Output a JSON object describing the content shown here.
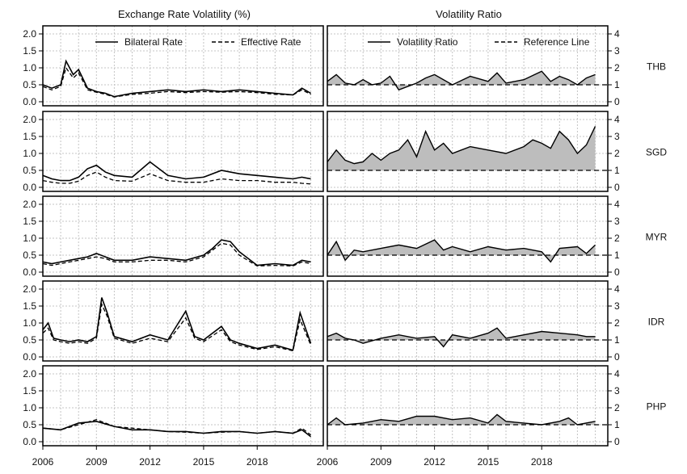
{
  "titles": {
    "left": "Exchange Rate Volatility (%)",
    "right": "Volatility Ratio"
  },
  "legends": {
    "left": [
      "Bilateral Rate",
      "Effective Rate"
    ],
    "right": [
      "Volatility Ratio",
      "Reference Line"
    ]
  },
  "x_tick_labels": [
    "2006",
    "2009",
    "2012",
    "2015",
    "2018"
  ],
  "chart_data": [
    {
      "type": "line",
      "panel": "left",
      "title": "Exchange Rate Volatility (%)",
      "xlim": [
        2006,
        2021.7
      ],
      "ylim": [
        0,
        2.0
      ],
      "y_ticks": [
        0.0,
        0.5,
        1.0,
        1.5,
        2.0
      ],
      "x_ticks": [
        2006,
        2009,
        2012,
        2015,
        2018
      ],
      "grid": true,
      "legend_position": "top",
      "series_names": [
        "Bilateral Rate",
        "Effective Rate"
      ],
      "facets": [
        {
          "label": "THB",
          "x": [
            2006.0,
            2006.5,
            2007.0,
            2007.3,
            2007.7,
            2008.0,
            2008.5,
            2009.0,
            2009.5,
            2010.0,
            2011.0,
            2012.0,
            2013.0,
            2014.0,
            2015.0,
            2016.0,
            2017.0,
            2018.0,
            2019.0,
            2020.0,
            2020.5,
            2021.0
          ],
          "series": [
            {
              "name": "Bilateral Rate",
              "values": [
                0.5,
                0.4,
                0.5,
                1.2,
                0.8,
                0.95,
                0.4,
                0.3,
                0.25,
                0.15,
                0.25,
                0.3,
                0.35,
                0.3,
                0.35,
                0.3,
                0.35,
                0.3,
                0.25,
                0.2,
                0.4,
                0.25
              ]
            },
            {
              "name": "Effective Rate",
              "values": [
                0.45,
                0.35,
                0.45,
                1.0,
                0.7,
                0.85,
                0.35,
                0.28,
                0.22,
                0.14,
                0.22,
                0.25,
                0.3,
                0.27,
                0.3,
                0.28,
                0.3,
                0.27,
                0.22,
                0.2,
                0.35,
                0.22
              ]
            }
          ]
        },
        {
          "label": "SGD",
          "x": [
            2006.0,
            2006.5,
            2007.0,
            2007.5,
            2008.0,
            2008.5,
            2009.0,
            2009.5,
            2010.0,
            2011.0,
            2012.0,
            2013.0,
            2014.0,
            2015.0,
            2016.0,
            2017.0,
            2018.0,
            2019.0,
            2020.0,
            2020.5,
            2021.0
          ],
          "series": [
            {
              "name": "Bilateral Rate",
              "values": [
                0.35,
                0.25,
                0.2,
                0.2,
                0.3,
                0.55,
                0.65,
                0.45,
                0.35,
                0.3,
                0.75,
                0.35,
                0.25,
                0.3,
                0.5,
                0.4,
                0.35,
                0.3,
                0.25,
                0.3,
                0.25
              ]
            },
            {
              "name": "Effective Rate",
              "values": [
                0.2,
                0.15,
                0.12,
                0.12,
                0.18,
                0.35,
                0.45,
                0.3,
                0.2,
                0.18,
                0.4,
                0.2,
                0.15,
                0.15,
                0.25,
                0.2,
                0.2,
                0.15,
                0.15,
                0.12,
                0.1
              ]
            }
          ]
        },
        {
          "label": "MYR",
          "x": [
            2006.0,
            2006.5,
            2007.0,
            2007.5,
            2008.0,
            2008.5,
            2009.0,
            2009.5,
            2010.0,
            2011.0,
            2012.0,
            2013.0,
            2014.0,
            2015.0,
            2015.5,
            2016.0,
            2016.5,
            2017.0,
            2018.0,
            2019.0,
            2020.0,
            2020.5,
            2021.0
          ],
          "series": [
            {
              "name": "Bilateral Rate",
              "values": [
                0.3,
                0.25,
                0.3,
                0.35,
                0.4,
                0.45,
                0.55,
                0.45,
                0.35,
                0.35,
                0.45,
                0.4,
                0.35,
                0.5,
                0.7,
                0.95,
                0.9,
                0.6,
                0.2,
                0.25,
                0.2,
                0.35,
                0.3
              ]
            },
            {
              "name": "Effective Rate",
              "values": [
                0.25,
                0.2,
                0.25,
                0.3,
                0.35,
                0.4,
                0.45,
                0.4,
                0.3,
                0.3,
                0.35,
                0.35,
                0.3,
                0.45,
                0.65,
                0.85,
                0.8,
                0.5,
                0.18,
                0.2,
                0.18,
                0.3,
                0.25
              ]
            }
          ]
        },
        {
          "label": "IDR",
          "x": [
            2006.0,
            2006.3,
            2006.6,
            2007.0,
            2007.5,
            2008.0,
            2008.5,
            2009.0,
            2009.3,
            2009.6,
            2010.0,
            2011.0,
            2012.0,
            2013.0,
            2014.0,
            2014.5,
            2015.0,
            2016.0,
            2016.5,
            2017.0,
            2018.0,
            2019.0,
            2020.0,
            2020.4,
            2020.8,
            2021.0
          ],
          "series": [
            {
              "name": "Bilateral Rate",
              "values": [
                0.8,
                1.0,
                0.55,
                0.5,
                0.45,
                0.5,
                0.45,
                0.6,
                1.75,
                1.3,
                0.6,
                0.45,
                0.65,
                0.5,
                1.35,
                0.6,
                0.5,
                0.9,
                0.5,
                0.4,
                0.25,
                0.35,
                0.2,
                1.3,
                0.7,
                0.4
              ]
            },
            {
              "name": "Effective Rate",
              "values": [
                0.7,
                0.85,
                0.5,
                0.45,
                0.4,
                0.45,
                0.4,
                0.55,
                1.55,
                1.2,
                0.55,
                0.4,
                0.55,
                0.45,
                1.15,
                0.55,
                0.45,
                0.8,
                0.45,
                0.35,
                0.22,
                0.3,
                0.18,
                1.1,
                0.6,
                0.35
              ]
            }
          ]
        },
        {
          "label": "PHP",
          "x": [
            2006.0,
            2007.0,
            2008.0,
            2009.0,
            2010.0,
            2011.0,
            2012.0,
            2013.0,
            2014.0,
            2015.0,
            2016.0,
            2017.0,
            2018.0,
            2019.0,
            2020.0,
            2020.5,
            2021.0
          ],
          "series": [
            {
              "name": "Bilateral Rate",
              "values": [
                0.4,
                0.35,
                0.55,
                0.6,
                0.45,
                0.35,
                0.35,
                0.3,
                0.3,
                0.25,
                0.3,
                0.3,
                0.25,
                0.3,
                0.25,
                0.35,
                0.15
              ]
            },
            {
              "name": "Effective Rate",
              "values": [
                0.4,
                0.35,
                0.5,
                0.65,
                0.45,
                0.4,
                0.35,
                0.3,
                0.28,
                0.25,
                0.28,
                0.3,
                0.25,
                0.3,
                0.25,
                0.4,
                0.2
              ]
            }
          ]
        }
      ]
    },
    {
      "type": "area",
      "panel": "right",
      "title": "Volatility Ratio",
      "xlim": [
        2006,
        2021.7
      ],
      "ylim": [
        0,
        4
      ],
      "y_ticks": [
        0,
        1,
        2,
        3,
        4
      ],
      "x_ticks": [
        2006,
        2009,
        2012,
        2015,
        2018
      ],
      "grid": true,
      "legend_position": "top",
      "reference_value": 1,
      "series_names": [
        "Volatility Ratio",
        "Reference Line"
      ],
      "facets": [
        {
          "label": "THB",
          "x": [
            2006.0,
            2006.5,
            2007.0,
            2007.5,
            2008.0,
            2008.5,
            2009.0,
            2009.5,
            2010.0,
            2011.0,
            2011.5,
            2012.0,
            2013.0,
            2014.0,
            2015.0,
            2015.5,
            2016.0,
            2017.0,
            2018.0,
            2018.5,
            2019.0,
            2019.5,
            2020.0,
            2020.5,
            2021.0
          ],
          "values": [
            1.2,
            1.6,
            1.1,
            1.0,
            1.3,
            1.0,
            1.1,
            1.5,
            0.7,
            1.1,
            1.4,
            1.6,
            1.0,
            1.5,
            1.2,
            1.7,
            1.1,
            1.3,
            1.8,
            1.2,
            1.5,
            1.3,
            1.0,
            1.4,
            1.6
          ]
        },
        {
          "label": "SGD",
          "x": [
            2006.0,
            2006.5,
            2007.0,
            2007.5,
            2008.0,
            2008.5,
            2009.0,
            2009.5,
            2010.0,
            2010.5,
            2011.0,
            2011.5,
            2012.0,
            2012.5,
            2013.0,
            2014.0,
            2015.0,
            2016.0,
            2017.0,
            2017.5,
            2018.0,
            2018.5,
            2019.0,
            2019.5,
            2020.0,
            2020.5,
            2021.0
          ],
          "values": [
            1.5,
            2.2,
            1.6,
            1.4,
            1.5,
            2.0,
            1.6,
            2.0,
            2.2,
            2.8,
            1.8,
            3.3,
            2.2,
            2.6,
            2.0,
            2.4,
            2.2,
            2.0,
            2.4,
            2.8,
            2.6,
            2.3,
            3.3,
            2.8,
            2.0,
            2.5,
            3.6
          ]
        },
        {
          "label": "MYR",
          "x": [
            2006.0,
            2006.5,
            2007.0,
            2007.5,
            2008.0,
            2009.0,
            2010.0,
            2011.0,
            2012.0,
            2012.5,
            2013.0,
            2014.0,
            2015.0,
            2016.0,
            2017.0,
            2018.0,
            2018.5,
            2019.0,
            2020.0,
            2020.5,
            2021.0
          ],
          "values": [
            1.0,
            1.8,
            0.7,
            1.3,
            1.2,
            1.4,
            1.6,
            1.4,
            1.9,
            1.3,
            1.5,
            1.2,
            1.5,
            1.3,
            1.4,
            1.2,
            0.6,
            1.4,
            1.5,
            1.1,
            1.6
          ]
        },
        {
          "label": "IDR",
          "x": [
            2006.0,
            2006.5,
            2007.0,
            2007.5,
            2008.0,
            2009.0,
            2010.0,
            2011.0,
            2012.0,
            2012.5,
            2013.0,
            2014.0,
            2015.0,
            2015.5,
            2016.0,
            2017.0,
            2018.0,
            2019.0,
            2020.0,
            2020.5,
            2021.0
          ],
          "values": [
            1.2,
            1.4,
            1.1,
            1.0,
            0.8,
            1.1,
            1.3,
            1.1,
            1.2,
            0.6,
            1.3,
            1.1,
            1.4,
            1.7,
            1.1,
            1.3,
            1.5,
            1.4,
            1.3,
            1.2,
            1.2
          ]
        },
        {
          "label": "PHP",
          "x": [
            2006.0,
            2006.5,
            2007.0,
            2008.0,
            2009.0,
            2010.0,
            2011.0,
            2012.0,
            2013.0,
            2014.0,
            2015.0,
            2015.5,
            2016.0,
            2017.0,
            2018.0,
            2019.0,
            2019.5,
            2020.0,
            2021.0
          ],
          "values": [
            1.0,
            1.4,
            1.0,
            1.1,
            1.3,
            1.2,
            1.5,
            1.5,
            1.3,
            1.4,
            1.1,
            1.6,
            1.2,
            1.1,
            1.0,
            1.2,
            1.4,
            1.0,
            1.2
          ]
        }
      ]
    }
  ]
}
